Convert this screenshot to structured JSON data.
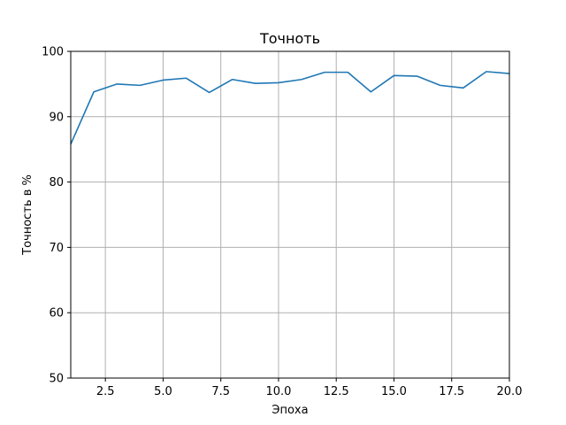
{
  "chart_data": {
    "type": "line",
    "title": "Точноть",
    "xlabel": "Эпоха",
    "ylabel": "Точность в %",
    "xlim": [
      1,
      20
    ],
    "ylim": [
      50,
      100
    ],
    "xticks": [
      "2.5",
      "5.0",
      "7.5",
      "10.0",
      "12.5",
      "15.0",
      "17.5",
      "20.0"
    ],
    "yticks": [
      "50",
      "60",
      "70",
      "80",
      "90",
      "100"
    ],
    "grid": true,
    "series_color": "#1f77b4",
    "series": [
      {
        "x": [
          1,
          2,
          3,
          4,
          5,
          6,
          7,
          8,
          9,
          10,
          11,
          12,
          13,
          14,
          15,
          16,
          17,
          18,
          19,
          20
        ],
        "values": [
          85.8,
          93.8,
          95.0,
          94.8,
          95.6,
          95.9,
          93.7,
          95.7,
          95.1,
          95.2,
          95.7,
          96.8,
          96.8,
          93.8,
          96.3,
          96.2,
          94.8,
          94.4,
          96.9,
          96.6
        ]
      }
    ]
  }
}
